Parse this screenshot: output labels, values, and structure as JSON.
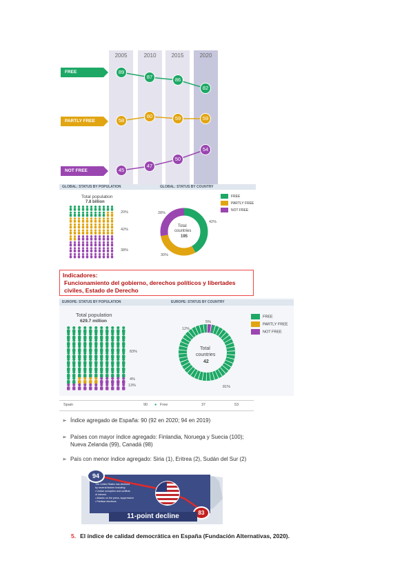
{
  "years": [
    "2005",
    "2010",
    "2015",
    "2020"
  ],
  "trend": {
    "free": {
      "label": "FREE",
      "values": [
        "89",
        "87",
        "86",
        "82"
      ],
      "color": "#1ea866"
    },
    "partly": {
      "label": "PARTLY FREE",
      "values": [
        "58",
        "60",
        "59",
        "59"
      ],
      "color": "#e1a512"
    },
    "notfree": {
      "label": "NOT FREE",
      "values": [
        "45",
        "47",
        "50",
        "54"
      ],
      "color": "#9a46b0"
    }
  },
  "global": {
    "pop_header": "GLOBAL: STATUS BY POPULATION",
    "country_header": "GLOBAL: STATUS BY COUNTRY",
    "pop_title": "Total population",
    "pop_value": "7.8 billion",
    "pop_pcts": [
      "20%",
      "42%",
      "38%"
    ],
    "donut_pcts": [
      "42%",
      "30%",
      "28%"
    ],
    "donut_label1": "Total",
    "donut_label2": "countries",
    "donut_value": "195",
    "legend": [
      "FREE",
      "PARTLY FREE",
      "NOT FREE"
    ]
  },
  "indicators": {
    "title": "Indicadores:",
    "line1": "Funcionamiento del gobierno, derechos políticos y libertades",
    "line2": "civiles, Estado de Derecho"
  },
  "europe": {
    "pop_header": "EUROPE: STATUS BY POPULATION",
    "country_header": "EUROPE: STATUS BY COUNTRY",
    "pop_title": "Total population",
    "pop_value": "629.7 million",
    "pop_pcts": [
      "83%",
      "4%",
      "13%"
    ],
    "donut_pcts": [
      "81%",
      "12%",
      "5%"
    ],
    "donut_label1": "Total",
    "donut_label2": "countries",
    "donut_value": "42",
    "legend": [
      "FREE",
      "PARTLY FREE",
      "NOT FREE"
    ]
  },
  "table_row": {
    "country": "Spain",
    "score": "90",
    "status": "Free",
    "c1": "37",
    "c2": "53"
  },
  "bullets": [
    "Índice agregado de España: 90 (92 en 2020; 94 en 2019)",
    "Países con mayor índice agregado: Finlandia, Noruega y Suecia (100);",
    "Nueva Zelanda (99), Canadá (98)",
    "País con menor índice agregado: Siria (1), Eritrea (2), Sudán del Sur (2)"
  ],
  "us_graphic": {
    "start": "94",
    "end": "83",
    "headline": "11-point decline",
    "text_lines": [
      "The United States has declined",
      "by several factors including:",
      "• Undue corruption and conflicts",
      "  of interest",
      "• Attacks on the press, suppression",
      "• Partisan elections"
    ]
  },
  "caption": {
    "number": "5.",
    "text": "El índice de calidad democrática en España (Fundación Alternativas, 2020)."
  },
  "colors": {
    "free": "#1ea866",
    "partly": "#e1a512",
    "notfree": "#9a46b0",
    "indicator_border": "#e44444"
  }
}
